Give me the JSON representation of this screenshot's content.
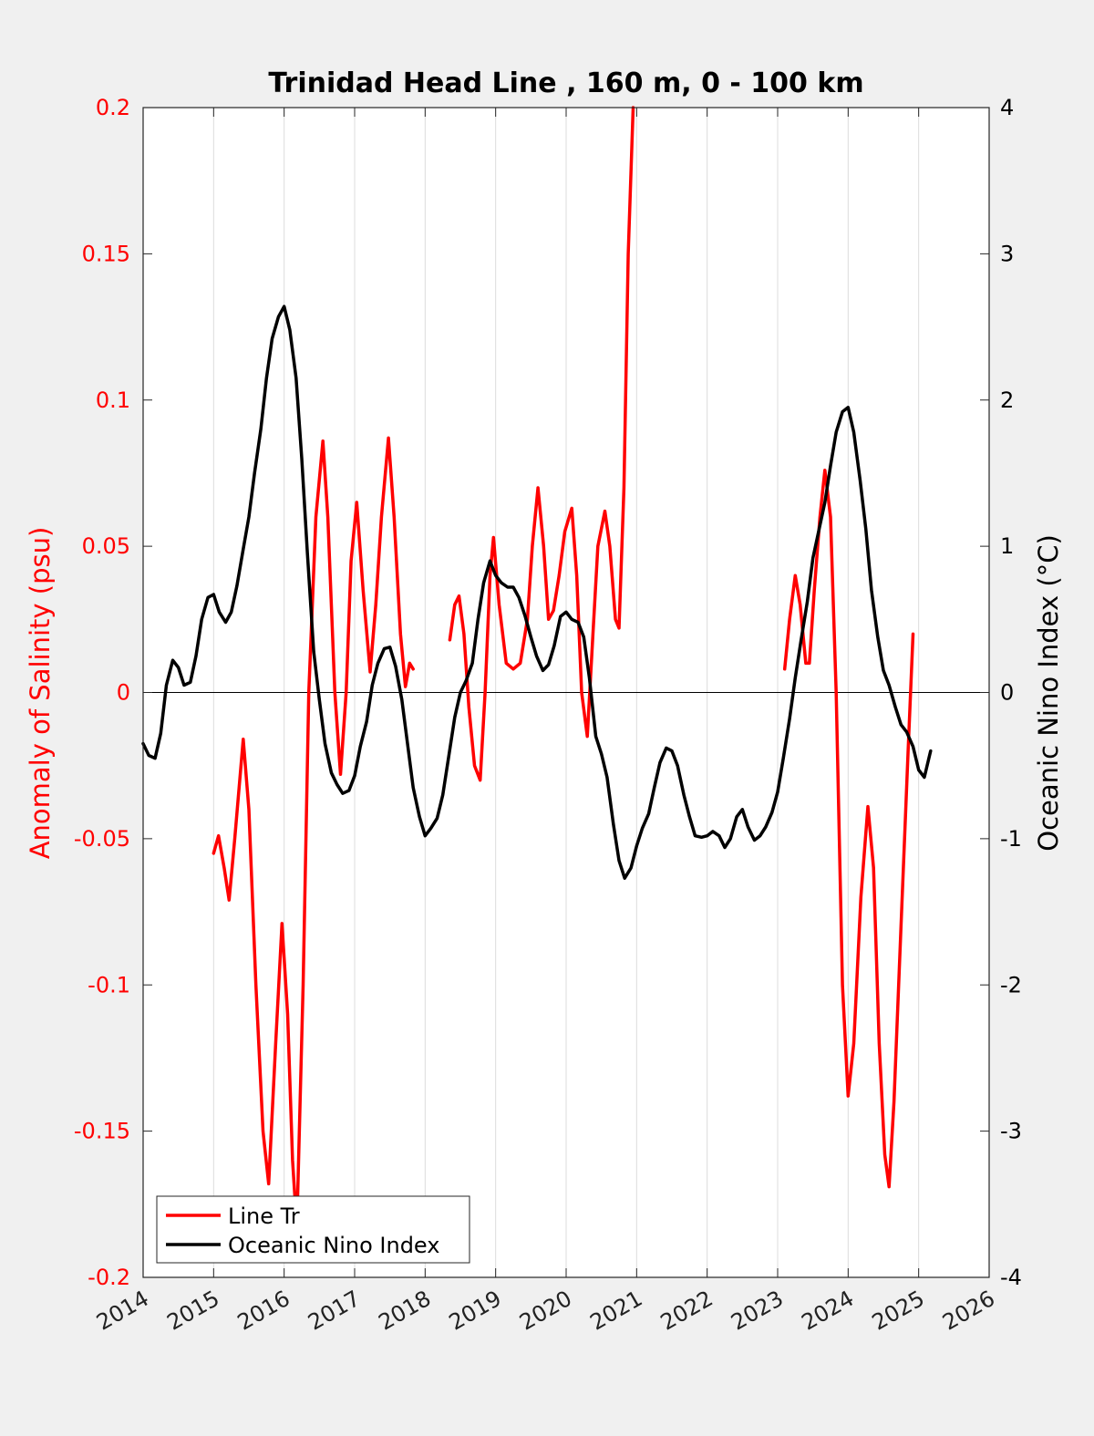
{
  "chart_data": {
    "type": "line",
    "title": "Trinidad Head Line , 160 m, 0 - 100 km",
    "ylabel_left": "Anomaly of Salinity (psu)",
    "ylabel_right": "Oceanic Nino Index (°C)",
    "xlim": [
      2014,
      2026
    ],
    "ylim_left": [
      -0.2,
      0.2
    ],
    "ylim_right": [
      -4,
      4
    ],
    "x_ticks": [
      "2014",
      "2015",
      "2016",
      "2017",
      "2018",
      "2019",
      "2020",
      "2021",
      "2022",
      "2023",
      "2024",
      "2025",
      "2026"
    ],
    "y_ticks_left": [
      "0.2",
      "0.15",
      "0.1",
      "0.05",
      "0",
      "-0.05",
      "-0.1",
      "-0.15",
      "-0.2"
    ],
    "y_ticks_right": [
      "4",
      "3",
      "2",
      "1",
      "0",
      "-1",
      "-2",
      "-3",
      "-4"
    ],
    "grid": "vertical",
    "legend_position": "bottom-left",
    "colors": {
      "salinity": "#ff0000",
      "oni": "#000000"
    },
    "series": [
      {
        "name": "Line Tr",
        "axis": "left",
        "segments": [
          [
            [
              2015.0,
              -0.055
            ],
            [
              2015.07,
              -0.049
            ],
            [
              2015.15,
              -0.06
            ],
            [
              2015.22,
              -0.071
            ],
            [
              2015.3,
              -0.05
            ],
            [
              2015.42,
              -0.016
            ],
            [
              2015.5,
              -0.04
            ],
            [
              2015.6,
              -0.1
            ],
            [
              2015.7,
              -0.15
            ],
            [
              2015.78,
              -0.168
            ],
            [
              2015.88,
              -0.12
            ],
            [
              2015.97,
              -0.079
            ],
            [
              2016.05,
              -0.11
            ],
            [
              2016.12,
              -0.16
            ],
            [
              2016.18,
              -0.183
            ],
            [
              2016.27,
              -0.1
            ],
            [
              2016.35,
              0.0
            ],
            [
              2016.45,
              0.06
            ],
            [
              2016.55,
              0.086
            ],
            [
              2016.62,
              0.06
            ],
            [
              2016.72,
              0.0
            ],
            [
              2016.8,
              -0.028
            ],
            [
              2016.88,
              0.0
            ],
            [
              2016.95,
              0.045
            ],
            [
              2017.03,
              0.065
            ],
            [
              2017.12,
              0.035
            ],
            [
              2017.22,
              0.007
            ],
            [
              2017.3,
              0.03
            ],
            [
              2017.38,
              0.06
            ],
            [
              2017.48,
              0.087
            ],
            [
              2017.56,
              0.06
            ],
            [
              2017.65,
              0.02
            ],
            [
              2017.72,
              0.002
            ],
            [
              2017.78,
              0.01
            ],
            [
              2017.83,
              0.008
            ]
          ],
          [
            [
              2018.35,
              0.018
            ],
            [
              2018.42,
              0.03
            ],
            [
              2018.48,
              0.033
            ],
            [
              2018.55,
              0.02
            ],
            [
              2018.62,
              -0.005
            ],
            [
              2018.7,
              -0.025
            ],
            [
              2018.78,
              -0.03
            ],
            [
              2018.85,
              0.0
            ],
            [
              2018.92,
              0.04
            ],
            [
              2018.97,
              0.053
            ],
            [
              2019.05,
              0.03
            ],
            [
              2019.15,
              0.01
            ],
            [
              2019.25,
              0.008
            ],
            [
              2019.35,
              0.01
            ],
            [
              2019.45,
              0.025
            ],
            [
              2019.52,
              0.05
            ],
            [
              2019.6,
              0.07
            ],
            [
              2019.68,
              0.05
            ],
            [
              2019.75,
              0.025
            ],
            [
              2019.82,
              0.028
            ],
            [
              2019.9,
              0.04
            ],
            [
              2019.98,
              0.055
            ],
            [
              2020.08,
              0.063
            ],
            [
              2020.15,
              0.04
            ],
            [
              2020.22,
              0.0
            ],
            [
              2020.3,
              -0.015
            ],
            [
              2020.38,
              0.02
            ],
            [
              2020.45,
              0.05
            ],
            [
              2020.55,
              0.062
            ],
            [
              2020.62,
              0.05
            ],
            [
              2020.7,
              0.025
            ],
            [
              2020.75,
              0.022
            ],
            [
              2020.82,
              0.07
            ],
            [
              2020.88,
              0.15
            ],
            [
              2020.95,
              0.2
            ]
          ],
          [
            [
              2023.1,
              0.008
            ],
            [
              2023.17,
              0.025
            ],
            [
              2023.25,
              0.04
            ],
            [
              2023.32,
              0.03
            ],
            [
              2023.4,
              0.01
            ],
            [
              2023.45,
              0.01
            ],
            [
              2023.52,
              0.035
            ],
            [
              2023.6,
              0.06
            ],
            [
              2023.67,
              0.076
            ],
            [
              2023.75,
              0.06
            ],
            [
              2023.83,
              0.0
            ],
            [
              2023.92,
              -0.1
            ],
            [
              2024.0,
              -0.138
            ],
            [
              2024.08,
              -0.12
            ],
            [
              2024.18,
              -0.07
            ],
            [
              2024.28,
              -0.039
            ],
            [
              2024.36,
              -0.06
            ],
            [
              2024.44,
              -0.12
            ],
            [
              2024.52,
              -0.158
            ],
            [
              2024.58,
              -0.169
            ],
            [
              2024.65,
              -0.14
            ],
            [
              2024.75,
              -0.08
            ],
            [
              2024.85,
              -0.02
            ],
            [
              2024.92,
              0.02
            ]
          ]
        ]
      },
      {
        "name": "Oceanic Nino Index",
        "axis": "right",
        "segments": [
          [
            [
              2014.0,
              -0.35
            ],
            [
              2014.08,
              -0.43
            ],
            [
              2014.17,
              -0.45
            ],
            [
              2014.25,
              -0.28
            ],
            [
              2014.33,
              0.05
            ],
            [
              2014.42,
              0.22
            ],
            [
              2014.5,
              0.17
            ],
            [
              2014.58,
              0.05
            ],
            [
              2014.67,
              0.07
            ],
            [
              2014.75,
              0.25
            ],
            [
              2014.83,
              0.5
            ],
            [
              2014.92,
              0.65
            ],
            [
              2015.0,
              0.67
            ],
            [
              2015.08,
              0.55
            ],
            [
              2015.17,
              0.48
            ],
            [
              2015.25,
              0.55
            ],
            [
              2015.33,
              0.73
            ],
            [
              2015.42,
              0.98
            ],
            [
              2015.5,
              1.2
            ],
            [
              2015.58,
              1.5
            ],
            [
              2015.67,
              1.8
            ],
            [
              2015.75,
              2.15
            ],
            [
              2015.83,
              2.42
            ],
            [
              2015.92,
              2.57
            ],
            [
              2016.0,
              2.64
            ],
            [
              2016.08,
              2.48
            ],
            [
              2016.17,
              2.15
            ],
            [
              2016.25,
              1.6
            ],
            [
              2016.33,
              0.95
            ],
            [
              2016.42,
              0.28
            ],
            [
              2016.5,
              -0.05
            ],
            [
              2016.58,
              -0.35
            ],
            [
              2016.67,
              -0.55
            ],
            [
              2016.75,
              -0.63
            ],
            [
              2016.83,
              -0.69
            ],
            [
              2016.92,
              -0.67
            ],
            [
              2017.0,
              -0.57
            ],
            [
              2017.08,
              -0.37
            ],
            [
              2017.17,
              -0.2
            ],
            [
              2017.25,
              0.05
            ],
            [
              2017.33,
              0.2
            ],
            [
              2017.42,
              0.3
            ],
            [
              2017.5,
              0.31
            ],
            [
              2017.58,
              0.18
            ],
            [
              2017.67,
              -0.05
            ],
            [
              2017.75,
              -0.35
            ],
            [
              2017.83,
              -0.65
            ],
            [
              2017.92,
              -0.85
            ],
            [
              2018.0,
              -0.98
            ],
            [
              2018.08,
              -0.93
            ],
            [
              2018.17,
              -0.86
            ],
            [
              2018.25,
              -0.7
            ],
            [
              2018.33,
              -0.45
            ],
            [
              2018.42,
              -0.17
            ],
            [
              2018.5,
              0.0
            ],
            [
              2018.58,
              0.08
            ],
            [
              2018.67,
              0.2
            ],
            [
              2018.75,
              0.5
            ],
            [
              2018.83,
              0.75
            ],
            [
              2018.92,
              0.9
            ],
            [
              2019.0,
              0.8
            ],
            [
              2019.08,
              0.75
            ],
            [
              2019.17,
              0.72
            ],
            [
              2019.25,
              0.72
            ],
            [
              2019.33,
              0.65
            ],
            [
              2019.42,
              0.52
            ],
            [
              2019.5,
              0.38
            ],
            [
              2019.58,
              0.25
            ],
            [
              2019.67,
              0.15
            ],
            [
              2019.75,
              0.19
            ],
            [
              2019.83,
              0.32
            ],
            [
              2019.92,
              0.52
            ],
            [
              2020.0,
              0.55
            ],
            [
              2020.08,
              0.5
            ],
            [
              2020.17,
              0.48
            ],
            [
              2020.25,
              0.38
            ],
            [
              2020.33,
              0.1
            ],
            [
              2020.42,
              -0.3
            ],
            [
              2020.5,
              -0.42
            ],
            [
              2020.58,
              -0.58
            ],
            [
              2020.67,
              -0.9
            ],
            [
              2020.75,
              -1.15
            ],
            [
              2020.83,
              -1.27
            ],
            [
              2020.92,
              -1.2
            ],
            [
              2021.0,
              -1.05
            ],
            [
              2021.08,
              -0.93
            ],
            [
              2021.17,
              -0.83
            ],
            [
              2021.25,
              -0.65
            ],
            [
              2021.33,
              -0.48
            ],
            [
              2021.42,
              -0.38
            ],
            [
              2021.5,
              -0.4
            ],
            [
              2021.58,
              -0.5
            ],
            [
              2021.67,
              -0.7
            ],
            [
              2021.75,
              -0.85
            ],
            [
              2021.83,
              -0.98
            ],
            [
              2021.92,
              -0.99
            ],
            [
              2022.0,
              -0.98
            ],
            [
              2022.08,
              -0.95
            ],
            [
              2022.17,
              -0.98
            ],
            [
              2022.25,
              -1.06
            ],
            [
              2022.33,
              -1.0
            ],
            [
              2022.42,
              -0.85
            ],
            [
              2022.5,
              -0.8
            ],
            [
              2022.58,
              -0.92
            ],
            [
              2022.67,
              -1.01
            ],
            [
              2022.75,
              -0.98
            ],
            [
              2022.83,
              -0.92
            ],
            [
              2022.92,
              -0.82
            ],
            [
              2023.0,
              -0.68
            ],
            [
              2023.08,
              -0.45
            ],
            [
              2023.17,
              -0.18
            ],
            [
              2023.25,
              0.1
            ],
            [
              2023.33,
              0.35
            ],
            [
              2023.42,
              0.62
            ],
            [
              2023.5,
              0.92
            ],
            [
              2023.58,
              1.1
            ],
            [
              2023.67,
              1.3
            ],
            [
              2023.75,
              1.55
            ],
            [
              2023.83,
              1.78
            ],
            [
              2023.92,
              1.92
            ],
            [
              2024.0,
              1.95
            ],
            [
              2024.08,
              1.78
            ],
            [
              2024.17,
              1.45
            ],
            [
              2024.25,
              1.12
            ],
            [
              2024.33,
              0.7
            ],
            [
              2024.42,
              0.38
            ],
            [
              2024.5,
              0.15
            ],
            [
              2024.58,
              0.05
            ],
            [
              2024.67,
              -0.1
            ],
            [
              2024.75,
              -0.22
            ],
            [
              2024.83,
              -0.27
            ],
            [
              2024.92,
              -0.37
            ],
            [
              2025.0,
              -0.53
            ],
            [
              2025.08,
              -0.58
            ],
            [
              2025.17,
              -0.4
            ]
          ]
        ]
      }
    ]
  }
}
